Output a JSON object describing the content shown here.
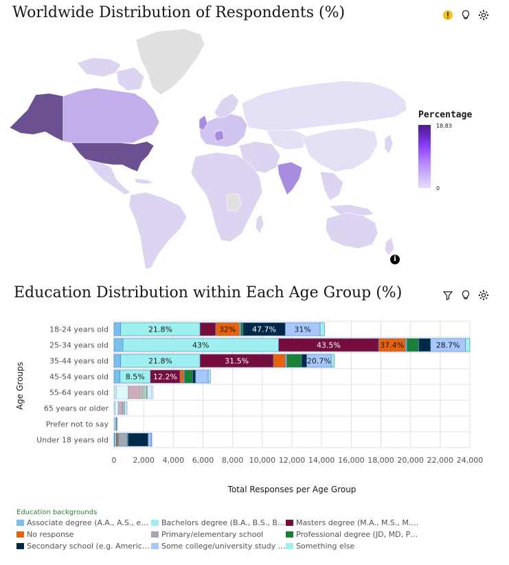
{
  "map_panel": {
    "title": "Worldwide Distribution of Respondents (%)",
    "legend_title": "Percentage",
    "legend_max": "18.83",
    "legend_min": "0",
    "icons": [
      "warning-icon",
      "lightbulb-icon",
      "settings-icon"
    ]
  },
  "bar_panel": {
    "title": "Education Distribution within Each Age Group (%)",
    "icons": [
      "filter-icon",
      "lightbulb-icon",
      "settings-icon"
    ],
    "legend_title": "Education backgrounds"
  },
  "colors": {
    "Associate degree (A.A., A.S., etc.)": "#78c0f0",
    "Bachelors degree (B.A., B.S., B.En...": "#9ef0f0",
    "Masters degree (M.A., M.S., M.En...": "#750e3c",
    "No response": "#e8620c",
    "Primary/elementary school": "#a2a9b0",
    "Professional degree (JD, MD, Ph.D...": "#198038",
    "Secondary school (e.g. American ...": "#012749",
    "Some college/university study wit...": "#a6c8ff",
    "Something else": "#a0f0eb"
  },
  "chart_data": [
    {
      "type": "map",
      "title": "Worldwide Distribution of Respondents (%)",
      "legend_title": "Percentage",
      "range": [
        0,
        18.83
      ],
      "regions_highlighted": [
        "United States",
        "Canada",
        "India",
        "Germany",
        "United Kingdom"
      ]
    },
    {
      "type": "bar",
      "orientation": "horizontal",
      "stacked": true,
      "title": "Education Distribution within Each Age Group (%)",
      "xlabel": "Total Responses per Age Group",
      "ylabel": "Age Groups",
      "xlim": [
        0,
        24000
      ],
      "xticks": [
        0,
        2000,
        4000,
        6000,
        8000,
        10000,
        12000,
        14000,
        16000,
        18000,
        20000,
        22000,
        24000
      ],
      "xtick_labels": [
        "0",
        "2,000",
        "4,000",
        "6,000",
        "8,000",
        "10,000",
        "12,000",
        "14,000",
        "16,000",
        "18,000",
        "20,000",
        "22,000",
        "24,000"
      ],
      "categories": [
        "18-24 years old",
        "25-34 years old",
        "35-44 years old",
        "45-54 years old",
        "55-64 years old",
        "65 years or older",
        "Prefer not to say",
        "Under 18 years old"
      ],
      "legend_position": "bottom",
      "grid": true,
      "series": [
        {
          "name": "Associate degree (A.A., A.S., etc.)",
          "values": [
            450,
            600,
            450,
            400,
            150,
            80,
            20,
            50
          ],
          "labels": [
            "",
            "",
            "",
            "",
            "",
            "",
            "",
            ""
          ]
        },
        {
          "name": "Bachelors degree (B.A., B.S., B.En...",
          "values": [
            5350,
            10500,
            5350,
            2050,
            800,
            200,
            80,
            100
          ],
          "labels": [
            "21.8%",
            "43%",
            "21.8%",
            "8.5%",
            "",
            "",
            "",
            ""
          ]
        },
        {
          "name": "Masters degree (M.A., M.S., M.En...",
          "values": [
            1050,
            6750,
            4950,
            2000,
            800,
            250,
            30,
            50
          ],
          "labels": [
            "",
            "43.5%",
            "31.5%",
            "12.2%",
            "",
            "",
            "",
            ""
          ]
        },
        {
          "name": "No response",
          "values": [
            1600,
            1800,
            800,
            250,
            100,
            50,
            20,
            100
          ],
          "labels": [
            "32%",
            "37.4%",
            "",
            "",
            "",
            "",
            "",
            ""
          ]
        },
        {
          "name": "Primary/elementary school",
          "values": [
            100,
            100,
            100,
            50,
            50,
            20,
            10,
            600
          ],
          "labels": [
            "",
            "",
            "",
            "",
            "",
            "",
            "",
            ""
          ]
        },
        {
          "name": "Professional degree (JD, MD, Ph.D...",
          "values": [
            150,
            800,
            1000,
            550,
            300,
            100,
            20,
            50
          ],
          "labels": [
            "",
            "",
            "",
            "",
            "",
            "",
            "",
            ""
          ]
        },
        {
          "name": "Secondary school (e.g. American ...",
          "values": [
            2850,
            800,
            350,
            200,
            50,
            20,
            10,
            1350
          ],
          "labels": [
            "47.7%",
            "",
            "",
            "",
            "",
            "",
            "",
            ""
          ]
        },
        {
          "name": "Some college/university study wit...",
          "values": [
            2350,
            2350,
            1650,
            850,
            300,
            120,
            30,
            200
          ],
          "labels": [
            "31%",
            "28.7%",
            "20.7%",
            "",
            "",
            "",
            "",
            ""
          ]
        },
        {
          "name": "Something else",
          "values": [
            300,
            300,
            200,
            150,
            100,
            60,
            10,
            50
          ],
          "labels": [
            "",
            "",
            "",
            "",
            "",
            "",
            "",
            ""
          ]
        }
      ]
    }
  ]
}
